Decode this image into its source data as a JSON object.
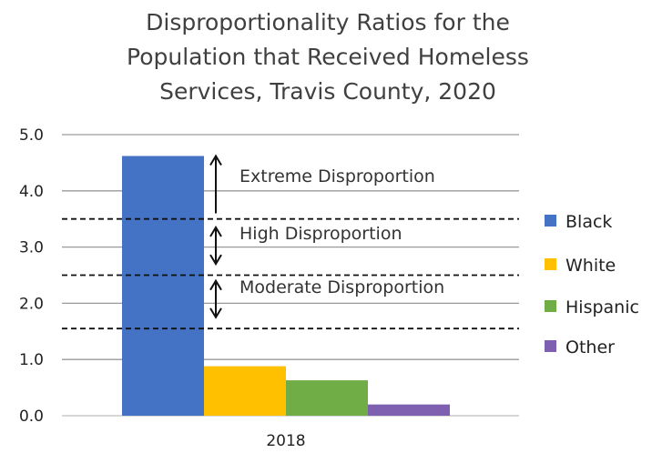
{
  "chart_data": {
    "type": "bar",
    "title": [
      "Disproportionality Ratios for the",
      "Population that Received Homeless",
      "Services, Travis County, 2020"
    ],
    "categories": [
      "2018"
    ],
    "series": [
      {
        "name": "Black",
        "values": [
          4.62
        ],
        "color": "#4472C4"
      },
      {
        "name": "White",
        "values": [
          0.88
        ],
        "color": "#FFC000"
      },
      {
        "name": "Hispanic",
        "values": [
          0.63
        ],
        "color": "#70AD47"
      },
      {
        "name": "Other",
        "values": [
          0.2
        ],
        "color": "#7F5FB0"
      }
    ],
    "ylim": [
      0,
      5
    ],
    "yticks": [
      "0.0",
      "1.0",
      "2.0",
      "3.0",
      "4.0",
      "5.0"
    ],
    "ytick_values": [
      0,
      1,
      2,
      3,
      4,
      5
    ],
    "grid": true,
    "legend_position": "right",
    "thresholds": [
      1.55,
      2.5,
      3.5
    ],
    "zones": [
      {
        "label": "Extreme Disproportion",
        "arrow_from": 3.6,
        "arrow_to": 4.62,
        "arrow": "up"
      },
      {
        "label": "High Disproportion",
        "arrow_from": 2.7,
        "arrow_to": 3.35,
        "arrow": "both"
      },
      {
        "label": "Moderate Disproportion",
        "arrow_from": 1.75,
        "arrow_to": 2.4,
        "arrow": "both"
      }
    ]
  }
}
